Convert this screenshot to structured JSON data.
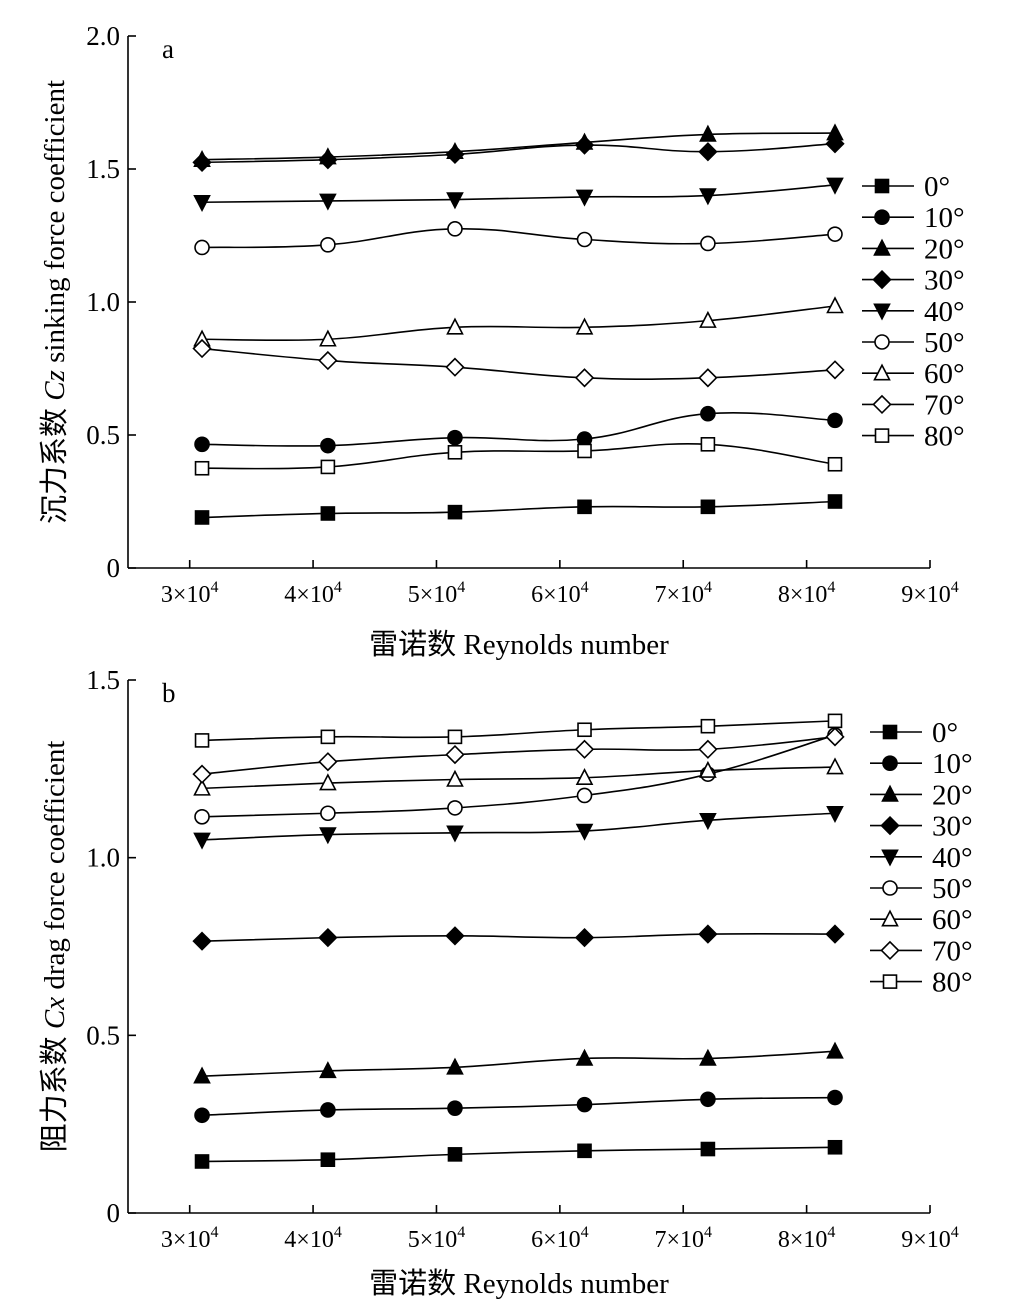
{
  "chart_data": [
    {
      "type": "line",
      "panel_label": "a",
      "xlabel": "雷诺数 Reynolds number",
      "ylabel_prefix": "沉力系数 ",
      "ylabel_symbol": "Cz",
      "ylabel_suffix": " sinking force coefficient",
      "xlim": [
        25000,
        90000
      ],
      "ylim": [
        0,
        2.0
      ],
      "x_ticks": [
        30000,
        40000,
        50000,
        60000,
        70000,
        80000,
        90000
      ],
      "x_tick_labels": [
        {
          "mant": "3×10",
          "exp": "4"
        },
        {
          "mant": "4×10",
          "exp": "4"
        },
        {
          "mant": "5×10",
          "exp": "4"
        },
        {
          "mant": "6×10",
          "exp": "4"
        },
        {
          "mant": "7×10",
          "exp": "4"
        },
        {
          "mant": "8×10",
          "exp": "4"
        },
        {
          "mant": "9×10",
          "exp": "4"
        }
      ],
      "y_ticks": [
        0,
        0.5,
        1.0,
        1.5,
        2.0
      ],
      "y_tick_labels": [
        "0",
        "0.5",
        "1.0",
        "1.5",
        "2.0"
      ],
      "legend_position": "right",
      "x": [
        31000,
        41200,
        51500,
        62000,
        72000,
        82300
      ],
      "series": [
        {
          "name": "0°",
          "marker": "square-filled",
          "values": [
            0.19,
            0.205,
            0.21,
            0.23,
            0.23,
            0.25
          ]
        },
        {
          "name": "10°",
          "marker": "circle-filled",
          "values": [
            0.465,
            0.46,
            0.49,
            0.485,
            0.58,
            0.555
          ]
        },
        {
          "name": "20°",
          "marker": "triangle-up-filled",
          "values": [
            1.535,
            1.545,
            1.565,
            1.6,
            1.63,
            1.635
          ]
        },
        {
          "name": "30°",
          "marker": "diamond-filled",
          "values": [
            1.525,
            1.535,
            1.555,
            1.59,
            1.565,
            1.595
          ]
        },
        {
          "name": "40°",
          "marker": "triangle-down-filled",
          "values": [
            1.375,
            1.38,
            1.385,
            1.395,
            1.4,
            1.44
          ]
        },
        {
          "name": "50°",
          "marker": "circle-open",
          "values": [
            1.205,
            1.215,
            1.275,
            1.235,
            1.22,
            1.255
          ]
        },
        {
          "name": "60°",
          "marker": "triangle-up-open",
          "values": [
            0.86,
            0.86,
            0.905,
            0.905,
            0.93,
            0.985
          ]
        },
        {
          "name": "70°",
          "marker": "diamond-open",
          "values": [
            0.825,
            0.78,
            0.755,
            0.715,
            0.715,
            0.745
          ]
        },
        {
          "name": "80°",
          "marker": "square-open",
          "values": [
            0.375,
            0.38,
            0.435,
            0.44,
            0.465,
            0.39
          ]
        }
      ]
    },
    {
      "type": "line",
      "panel_label": "b",
      "xlabel": "雷诺数 Reynolds number",
      "ylabel_prefix": "阻力系数 ",
      "ylabel_symbol": "Cx",
      "ylabel_suffix": " drag force coefficient",
      "xlim": [
        25000,
        90000
      ],
      "ylim": [
        0,
        1.5
      ],
      "x_ticks": [
        30000,
        40000,
        50000,
        60000,
        70000,
        80000,
        90000
      ],
      "x_tick_labels": [
        {
          "mant": "3×10",
          "exp": "4"
        },
        {
          "mant": "4×10",
          "exp": "4"
        },
        {
          "mant": "5×10",
          "exp": "4"
        },
        {
          "mant": "6×10",
          "exp": "4"
        },
        {
          "mant": "7×10",
          "exp": "4"
        },
        {
          "mant": "8×10",
          "exp": "4"
        },
        {
          "mant": "9×10",
          "exp": "4"
        }
      ],
      "y_ticks": [
        0,
        0.5,
        1.0,
        1.5
      ],
      "y_tick_labels": [
        "0",
        "0.5",
        "1.0",
        "1.5"
      ],
      "legend_position": "right",
      "x": [
        31000,
        41200,
        51500,
        62000,
        72000,
        82300
      ],
      "series": [
        {
          "name": "0°",
          "marker": "square-filled",
          "values": [
            0.145,
            0.15,
            0.165,
            0.175,
            0.18,
            0.185
          ]
        },
        {
          "name": "10°",
          "marker": "circle-filled",
          "values": [
            0.275,
            0.29,
            0.295,
            0.305,
            0.32,
            0.325
          ]
        },
        {
          "name": "20°",
          "marker": "triangle-up-filled",
          "values": [
            0.385,
            0.4,
            0.41,
            0.435,
            0.435,
            0.455
          ]
        },
        {
          "name": "30°",
          "marker": "diamond-filled",
          "values": [
            0.765,
            0.775,
            0.78,
            0.775,
            0.785,
            0.785
          ]
        },
        {
          "name": "40°",
          "marker": "triangle-down-filled",
          "values": [
            1.05,
            1.065,
            1.07,
            1.075,
            1.105,
            1.125
          ]
        },
        {
          "name": "50°",
          "marker": "circle-open",
          "values": [
            1.115,
            1.125,
            1.14,
            1.175,
            1.235,
            1.345
          ]
        },
        {
          "name": "60°",
          "marker": "triangle-up-open",
          "values": [
            1.195,
            1.21,
            1.22,
            1.225,
            1.245,
            1.255
          ]
        },
        {
          "name": "70°",
          "marker": "diamond-open",
          "values": [
            1.235,
            1.27,
            1.29,
            1.305,
            1.305,
            1.34
          ]
        },
        {
          "name": "80°",
          "marker": "square-open",
          "values": [
            1.33,
            1.34,
            1.34,
            1.36,
            1.37,
            1.385
          ]
        }
      ]
    }
  ]
}
